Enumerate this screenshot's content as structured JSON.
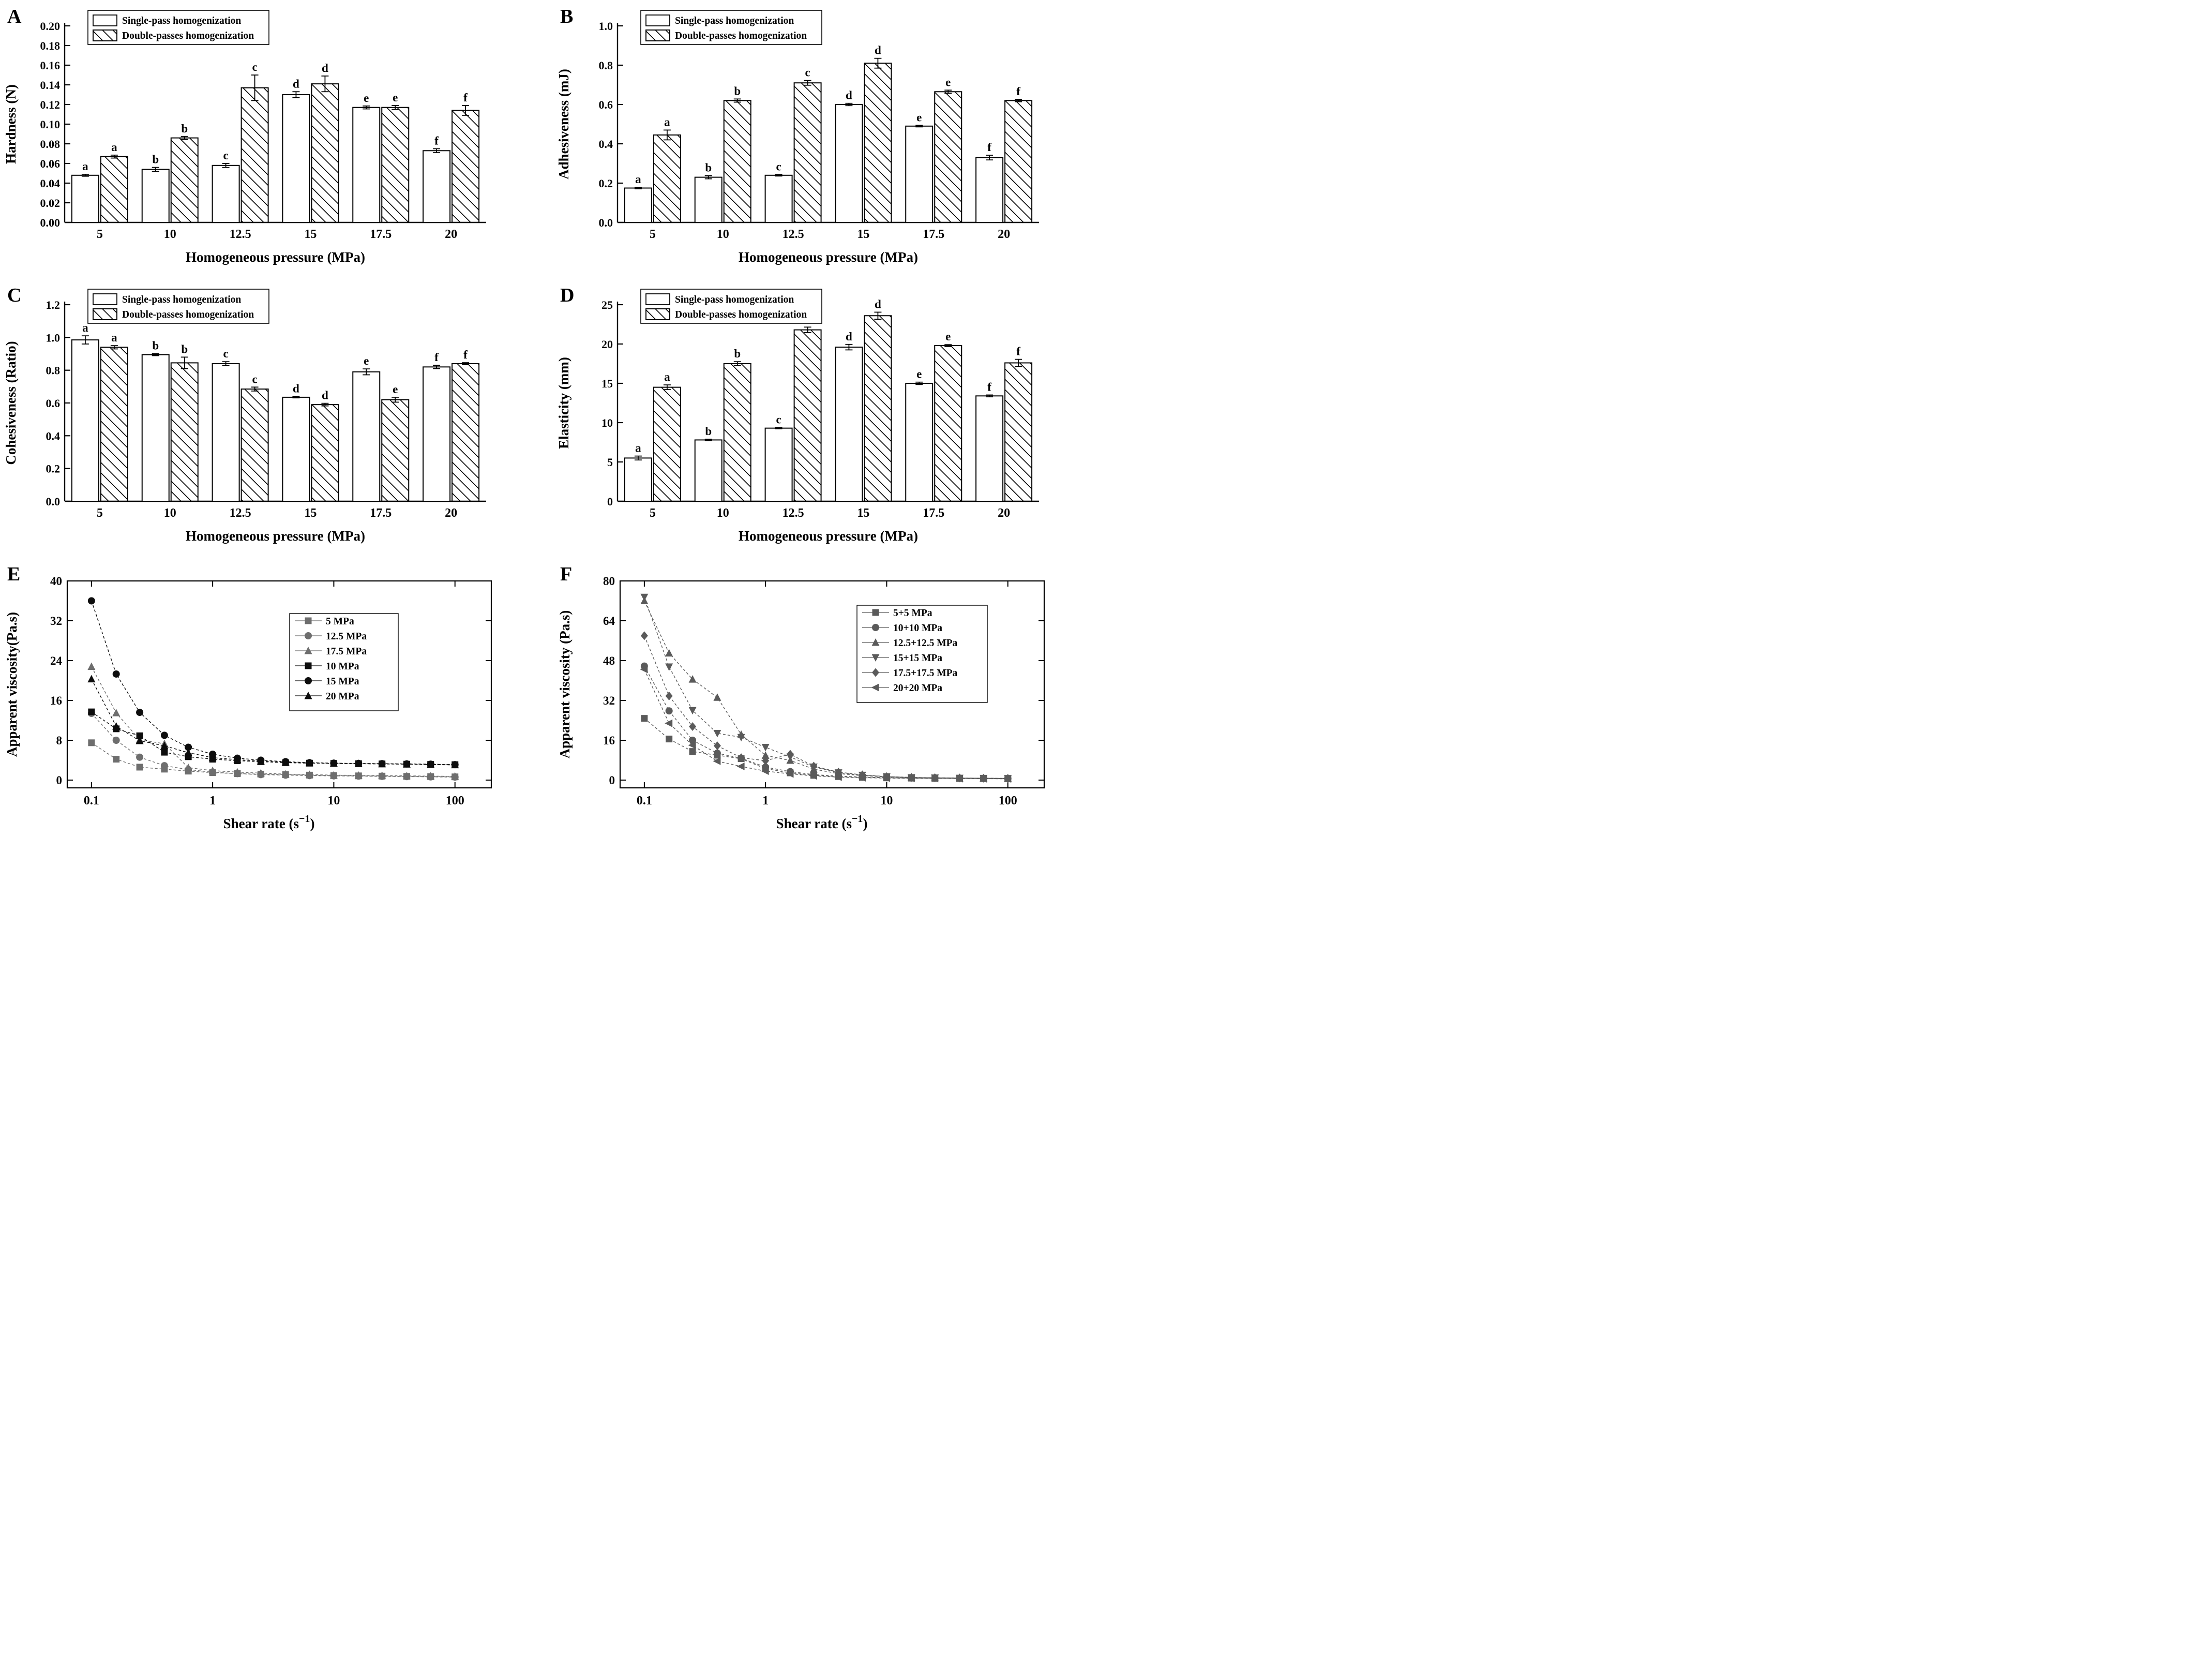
{
  "page": {
    "background": "#ffffff",
    "text_color": "#000000",
    "tick_color_line_panels": "#474747"
  },
  "chart_data": [
    {
      "panel": "A",
      "type": "bar",
      "ylabel": "Hardness (N)",
      "xlabel": "Homogeneous pressure (MPa)",
      "categories": [
        "5",
        "10",
        "12.5",
        "15",
        "17.5",
        "20"
      ],
      "ylim": [
        0,
        0.2
      ],
      "ystep": 0.02,
      "yticks": [
        "0.00",
        "0.02",
        "0.04",
        "0.06",
        "0.08",
        "0.10",
        "0.12",
        "0.14",
        "0.16",
        "0.18",
        "0.20"
      ],
      "legend": [
        "Single-pass homogenization",
        "Double-passes homogenization"
      ],
      "series": [
        {
          "name": "Single-pass homogenization",
          "style": "plain",
          "values": [
            0.048,
            0.054,
            0.058,
            0.13,
            0.117,
            0.073
          ],
          "errors": [
            0.001,
            0.002,
            0.002,
            0.003,
            0.0015,
            0.002
          ],
          "letters": [
            "a",
            "b",
            "c",
            "d",
            "e",
            "f"
          ]
        },
        {
          "name": "Double-passes homogenization",
          "style": "hatch",
          "values": [
            0.067,
            0.086,
            0.137,
            0.141,
            0.117,
            0.114
          ],
          "errors": [
            0.0015,
            0.0015,
            0.013,
            0.008,
            0.002,
            0.005
          ],
          "letters": [
            "a",
            "b",
            "c",
            "d",
            "e",
            "f"
          ]
        }
      ]
    },
    {
      "panel": "B",
      "type": "bar",
      "ylabel": "Adhesiveness (mJ)",
      "xlabel": "Homogeneous pressure (MPa)",
      "categories": [
        "5",
        "10",
        "12.5",
        "15",
        "17.5",
        "20"
      ],
      "ylim": [
        0,
        1.0
      ],
      "ystep": 0.2,
      "yticks": [
        "0.0",
        "0.2",
        "0.4",
        "0.6",
        "0.8",
        "1.0"
      ],
      "legend": [
        "Single-pass homogenization",
        "Double-passes homogenization"
      ],
      "series": [
        {
          "name": "Single-pass homogenization",
          "style": "plain",
          "values": [
            0.175,
            0.23,
            0.24,
            0.6,
            0.49,
            0.33
          ],
          "errors": [
            0.004,
            0.008,
            0.004,
            0.006,
            0.004,
            0.012
          ],
          "letters": [
            "a",
            "b",
            "c",
            "d",
            "e",
            "f"
          ]
        },
        {
          "name": "Double-passes homogenization",
          "style": "hatch",
          "values": [
            0.445,
            0.62,
            0.71,
            0.81,
            0.665,
            0.62
          ],
          "errors": [
            0.025,
            0.008,
            0.012,
            0.025,
            0.008,
            0.006
          ],
          "letters": [
            "a",
            "b",
            "c",
            "d",
            "e",
            "f"
          ]
        }
      ]
    },
    {
      "panel": "C",
      "type": "bar",
      "ylabel": "Cohesiveness (Ratio)",
      "xlabel": "Homogeneous pressure (MPa)",
      "categories": [
        "5",
        "10",
        "12.5",
        "15",
        "17.5",
        "20"
      ],
      "ylim": [
        0,
        1.2
      ],
      "ystep": 0.2,
      "yticks": [
        "0.0",
        "0.2",
        "0.4",
        "0.6",
        "0.8",
        "1.0",
        "1.2"
      ],
      "legend": [
        "Single-pass homogenization",
        "Double-passes homogenization"
      ],
      "series": [
        {
          "name": "Single-pass homogenization",
          "style": "plain",
          "values": [
            0.985,
            0.895,
            0.84,
            0.635,
            0.79,
            0.82
          ],
          "errors": [
            0.025,
            0.006,
            0.012,
            0.004,
            0.018,
            0.01
          ],
          "letters": [
            "a",
            "b",
            "c",
            "d",
            "e",
            "f"
          ]
        },
        {
          "name": "Double-passes homogenization",
          "style": "hatch",
          "values": [
            0.94,
            0.845,
            0.685,
            0.59,
            0.62,
            0.84
          ],
          "errors": [
            0.01,
            0.035,
            0.012,
            0.008,
            0.015,
            0.006
          ],
          "letters": [
            "a",
            "b",
            "c",
            "d",
            "e",
            "f"
          ]
        }
      ]
    },
    {
      "panel": "D",
      "type": "bar",
      "ylabel": "Elasticity (mm)",
      "xlabel": "Homogeneous pressure (MPa)",
      "categories": [
        "5",
        "10",
        "12.5",
        "15",
        "17.5",
        "20"
      ],
      "ylim": [
        0,
        25
      ],
      "ystep": 5,
      "yticks": [
        "0",
        "5",
        "10",
        "15",
        "20",
        "25"
      ],
      "legend": [
        "Single-pass homogenization",
        "Double-passes homogenization"
      ],
      "series": [
        {
          "name": "Single-pass homogenization",
          "style": "plain",
          "values": [
            5.5,
            7.8,
            9.3,
            19.6,
            15.0,
            13.4
          ],
          "errors": [
            0.25,
            0.1,
            0.08,
            0.35,
            0.15,
            0.12
          ],
          "letters": [
            "a",
            "b",
            "c",
            "d",
            "e",
            "f"
          ]
        },
        {
          "name": "Double-passes homogenization",
          "style": "hatch",
          "values": [
            14.5,
            17.5,
            21.8,
            23.6,
            19.8,
            17.6
          ],
          "errors": [
            0.3,
            0.25,
            0.35,
            0.45,
            0.12,
            0.45
          ],
          "letters": [
            "a",
            "b",
            "c",
            "d",
            "e",
            "f"
          ]
        }
      ]
    },
    {
      "panel": "E",
      "type": "line",
      "ylabel": "Apparent viscosity(Pa.s)",
      "xlabel_parts": {
        "prefix": "Shear rate (s",
        "sup": "−1",
        "suffix": ")"
      },
      "ylim": [
        0,
        40
      ],
      "ystep": 8,
      "yticks": [
        "0",
        "8",
        "16",
        "24",
        "32",
        "40"
      ],
      "xticks": [
        0.1,
        1,
        10,
        100
      ],
      "xticklabels": [
        "0.1",
        "1",
        "10",
        "100"
      ],
      "x": [
        0.1,
        0.16,
        0.25,
        0.4,
        0.63,
        1,
        1.6,
        2.5,
        4,
        6.3,
        10,
        16,
        25,
        40,
        63,
        100
      ],
      "series": [
        {
          "name": "5 MPa",
          "marker": "square",
          "color": "#6e6e6e",
          "values": [
            7.5,
            4.2,
            2.6,
            2.2,
            1.8,
            1.5,
            1.3,
            1.2,
            1.1,
            1.0,
            0.9,
            0.85,
            0.8,
            0.75,
            0.7,
            0.65
          ]
        },
        {
          "name": "12.5 MPa",
          "marker": "circle",
          "color": "#6e6e6e",
          "values": [
            13.4,
            8.0,
            4.6,
            2.9,
            2.1,
            1.6,
            1.3,
            1.1,
            1.0,
            0.9,
            0.85,
            0.8,
            0.75,
            0.7,
            0.65,
            0.6
          ]
        },
        {
          "name": "17.5 MPa",
          "marker": "triangle-up",
          "color": "#6e6e6e",
          "values": [
            22.8,
            13.5,
            8.1,
            7.3,
            2.5,
            1.9,
            1.6,
            1.4,
            1.2,
            1.1,
            1.0,
            0.95,
            0.9,
            0.85,
            0.8,
            0.75
          ]
        },
        {
          "name": "10 MPa",
          "marker": "square",
          "color": "#0d0d0d",
          "values": [
            13.7,
            10.3,
            8.9,
            5.6,
            4.7,
            4.2,
            3.9,
            3.7,
            3.5,
            3.4,
            3.35,
            3.3,
            3.25,
            3.2,
            3.15,
            3.1
          ]
        },
        {
          "name": "15 MPa",
          "marker": "circle",
          "color": "#0d0d0d",
          "values": [
            36.0,
            21.3,
            13.6,
            9.0,
            6.6,
            5.2,
            4.4,
            4.0,
            3.7,
            3.5,
            3.4,
            3.35,
            3.3,
            3.25,
            3.2,
            3.1
          ]
        },
        {
          "name": "20 MPa",
          "marker": "triangle-up",
          "color": "#0d0d0d",
          "values": [
            20.3,
            10.8,
            7.9,
            6.9,
            5.5,
            4.5,
            4.1,
            3.8,
            3.6,
            3.45,
            3.35,
            3.3,
            3.25,
            3.2,
            3.1,
            3.05
          ]
        }
      ]
    },
    {
      "panel": "F",
      "type": "line",
      "ylabel": "Apparent viscosity (Pa.s)",
      "xlabel_parts": {
        "prefix": "Shear rate (s",
        "sup": "−1",
        "suffix": ")"
      },
      "ylim": [
        0,
        80
      ],
      "ystep": 16,
      "yticks": [
        "0",
        "16",
        "32",
        "48",
        "64",
        "80"
      ],
      "xticks": [
        0.1,
        1,
        10,
        100
      ],
      "xticklabels": [
        "0.1",
        "1",
        "10",
        "100"
      ],
      "x": [
        0.1,
        0.16,
        0.25,
        0.4,
        0.63,
        1,
        1.6,
        2.5,
        4,
        6.3,
        10,
        16,
        25,
        40,
        63,
        100
      ],
      "series": [
        {
          "name": "5+5 MPa",
          "marker": "square",
          "color": "#5a5a5a",
          "values": [
            24.8,
            16.5,
            11.5,
            10.0,
            8.6,
            4.6,
            2.9,
            1.9,
            1.4,
            1.1,
            0.9,
            0.8,
            0.7,
            0.65,
            0.6,
            0.55
          ]
        },
        {
          "name": "10+10 MPa",
          "marker": "circle",
          "color": "#5a5a5a",
          "values": [
            45.8,
            27.8,
            16.0,
            10.8,
            8.8,
            5.2,
            3.4,
            2.2,
            1.6,
            1.2,
            1.0,
            0.85,
            0.75,
            0.7,
            0.65,
            0.6
          ]
        },
        {
          "name": "12.5+12.5 MPa",
          "marker": "triangle-up",
          "color": "#5a5a5a",
          "values": [
            72.0,
            51.0,
            40.5,
            33.2,
            18.3,
            9.9,
            7.9,
            4.4,
            2.6,
            1.8,
            1.3,
            1.0,
            0.9,
            0.8,
            0.75,
            0.7
          ]
        },
        {
          "name": "15+15 MPa",
          "marker": "triangle-down",
          "color": "#5a5a5a",
          "values": [
            73.5,
            45.5,
            28.0,
            18.8,
            17.2,
            13.2,
            9.3,
            5.3,
            3.0,
            2.0,
            1.4,
            1.05,
            0.9,
            0.8,
            0.75,
            0.7
          ]
        },
        {
          "name": "17.5+17.5 MPa",
          "marker": "diamond",
          "color": "#5a5a5a",
          "values": [
            58.0,
            33.8,
            21.5,
            13.8,
            9.0,
            7.8,
            10.4,
            5.6,
            3.2,
            2.1,
            1.4,
            1.1,
            0.95,
            0.85,
            0.75,
            0.7
          ]
        },
        {
          "name": "20+20 MPa",
          "marker": "triangle-left",
          "color": "#5a5a5a",
          "values": [
            44.5,
            22.8,
            14.0,
            7.6,
            5.5,
            3.6,
            2.5,
            1.7,
            1.2,
            0.95,
            0.8,
            0.7,
            0.65,
            0.6,
            0.55,
            0.5
          ]
        }
      ]
    }
  ]
}
